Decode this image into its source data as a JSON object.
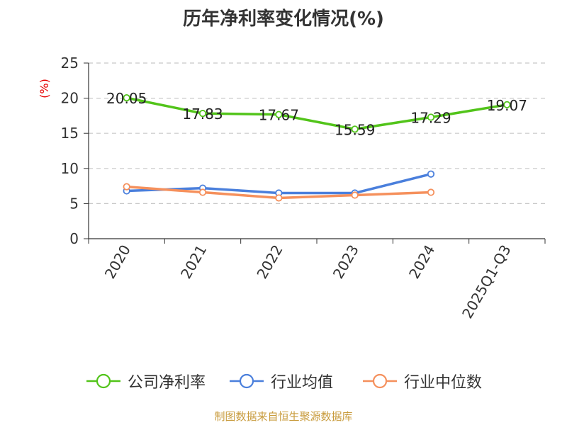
{
  "chart_data": {
    "type": "line",
    "title": "历年净利率变化情况(%)",
    "ylabel": "(%)",
    "categories": [
      "2020",
      "2021",
      "2022",
      "2023",
      "2024",
      "2025Q1-Q3"
    ],
    "ylim": [
      0,
      25
    ],
    "yticks": [
      "0",
      "5",
      "10",
      "15",
      "20",
      "25"
    ],
    "grid": "horizontal dashed",
    "legend_position": "bottom",
    "series": [
      {
        "name": "公司净利率",
        "color": "#52c41a",
        "values": [
          20.05,
          17.83,
          17.67,
          15.59,
          17.29,
          19.07
        ],
        "labels": [
          "20.05",
          "17.83",
          "17.67",
          "15.59",
          "17.29",
          "19.07"
        ]
      },
      {
        "name": "行业均值",
        "color": "#4a7fdc",
        "values": [
          6.8,
          7.2,
          6.5,
          6.5,
          9.2,
          null
        ]
      },
      {
        "name": "行业中位数",
        "color": "#f5905c",
        "values": [
          7.4,
          6.6,
          5.8,
          6.2,
          6.6,
          null
        ]
      }
    ]
  },
  "footer": "制图数据来自恒生聚源数据库"
}
